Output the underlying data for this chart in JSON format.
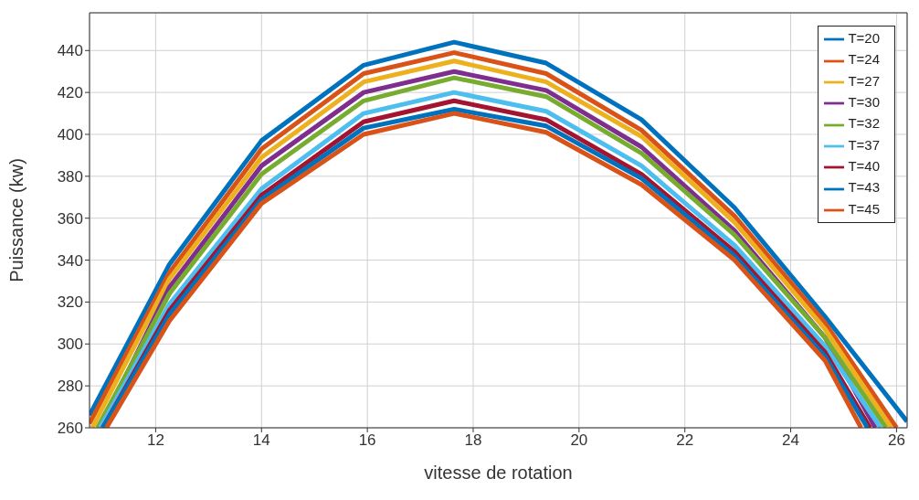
{
  "chart_data": {
    "type": "line",
    "xlabel": "vitesse de rotation",
    "ylabel": "Puissance (kw)",
    "xlim": [
      10.75,
      26.2
    ],
    "xticks": [
      12,
      14,
      16,
      18,
      20,
      22,
      24,
      26
    ],
    "ylim": [
      260,
      458
    ],
    "yticks": [
      260,
      280,
      300,
      320,
      340,
      360,
      380,
      400,
      420,
      440
    ],
    "grid": true,
    "legend": "top right",
    "marker": "none",
    "line_style": "solid",
    "series": [
      {
        "name": "T=20",
        "color": "#0072bd",
        "x": [
          10.75,
          12.26,
          14.0,
          15.93,
          17.64,
          19.38,
          21.18,
          22.94,
          24.65,
          26.2
        ],
        "values": [
          266,
          338,
          397,
          433,
          444,
          434,
          407,
          365,
          313,
          263
        ]
      },
      {
        "name": "T=24",
        "color": "#d95319",
        "x": [
          10.75,
          12.26,
          14.0,
          15.93,
          17.64,
          19.38,
          21.18,
          22.94,
          24.65,
          26.0
        ],
        "values": [
          262,
          334,
          393,
          429,
          439,
          429,
          402,
          361,
          310,
          260
        ]
      },
      {
        "name": "T=27",
        "color": "#edb120",
        "x": [
          10.8,
          12.26,
          14.0,
          15.93,
          17.64,
          19.38,
          21.18,
          22.94,
          24.65,
          25.9
        ],
        "values": [
          260,
          331,
          389,
          425,
          435,
          425,
          399,
          358,
          307,
          260
        ]
      },
      {
        "name": "T=30",
        "color": "#7e2f8e",
        "x": [
          10.95,
          12.26,
          14.0,
          15.93,
          17.64,
          19.38,
          21.18,
          22.94,
          24.65,
          25.6
        ],
        "values": [
          260,
          327,
          385,
          420,
          430,
          421,
          394,
          354,
          303,
          260
        ]
      },
      {
        "name": "T=32",
        "color": "#77ac30",
        "x": [
          10.9,
          12.26,
          14.0,
          15.93,
          17.64,
          19.38,
          21.18,
          22.94,
          24.65,
          25.8
        ],
        "values": [
          260,
          324,
          381,
          416,
          427,
          418,
          391,
          352,
          303,
          260
        ]
      },
      {
        "name": "T=37",
        "color": "#4dbeee",
        "x": [
          10.95,
          12.26,
          14.0,
          15.93,
          17.64,
          19.38,
          21.18,
          22.94,
          24.65,
          25.7
        ],
        "values": [
          260,
          319,
          374,
          410,
          420,
          411,
          385,
          347,
          299,
          260
        ]
      },
      {
        "name": "T=40",
        "color": "#a2142f",
        "x": [
          11.0,
          12.26,
          14.0,
          15.93,
          17.64,
          19.38,
          21.18,
          22.94,
          24.65,
          25.5
        ],
        "values": [
          260,
          316,
          371,
          406,
          416,
          407,
          381,
          344,
          296,
          260
        ]
      },
      {
        "name": "T=43",
        "color": "#0072bd",
        "x": [
          11.0,
          12.26,
          14.0,
          15.93,
          17.64,
          19.38,
          21.18,
          22.94,
          24.65,
          25.45
        ],
        "values": [
          260,
          314,
          369,
          403,
          412,
          404,
          379,
          342,
          294,
          260
        ]
      },
      {
        "name": "T=45",
        "color": "#d95319",
        "x": [
          11.07,
          12.26,
          14.0,
          15.93,
          17.64,
          19.38,
          21.18,
          22.94,
          24.65,
          25.33
        ],
        "values": [
          260,
          311,
          367,
          400,
          410,
          401,
          376,
          340,
          292,
          260
        ]
      }
    ]
  }
}
